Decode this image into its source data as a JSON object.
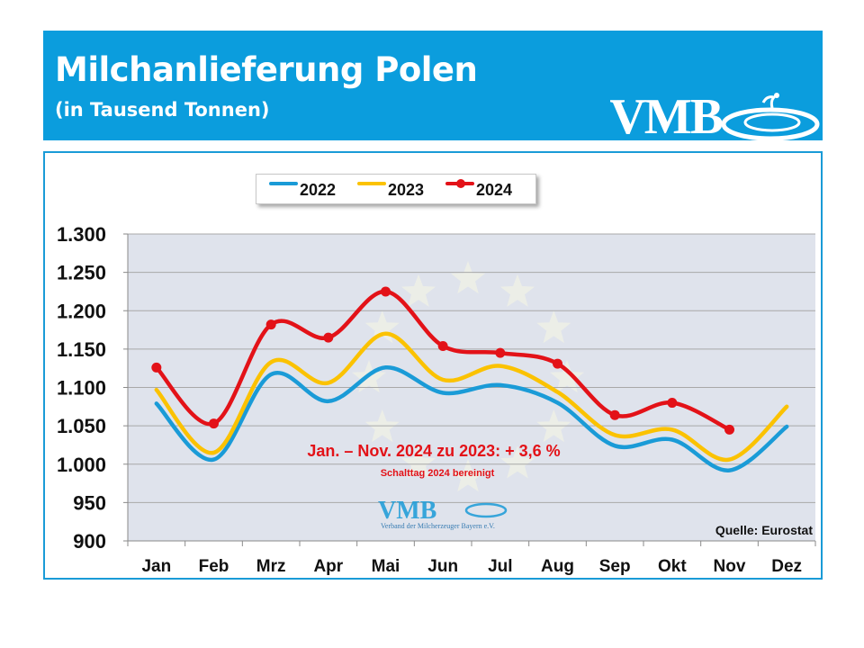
{
  "header": {
    "title": "Milchanlieferung Polen",
    "subtitle": "(in Tausend Tonnen)",
    "logo_text": "VMB"
  },
  "colors": {
    "header_bg": "#0b9ddd",
    "frame": "#1a9bd7",
    "plot_bg": "#dfe3ec",
    "series_2022": "#1a9bd7",
    "series_2023": "#fbc200",
    "series_2024": "#e31218",
    "annotation": "#e31218"
  },
  "chart_data": {
    "type": "line",
    "categories": [
      "Jan",
      "Feb",
      "Mrz",
      "Apr",
      "Mai",
      "Jun",
      "Jul",
      "Aug",
      "Sep",
      "Okt",
      "Nov",
      "Dez"
    ],
    "ylim": [
      900,
      1300
    ],
    "yticks": [
      900,
      950,
      1000,
      1050,
      1100,
      1150,
      1200,
      1250,
      1300
    ],
    "ytick_labels": [
      "900",
      "950",
      "1.000",
      "1.050",
      "1.100",
      "1.150",
      "1.200",
      "1.250",
      "1.300"
    ],
    "grid": true,
    "legend": "top",
    "series": [
      {
        "name": "2022",
        "values": [
          1079,
          1006,
          1117,
          1082,
          1126,
          1093,
          1103,
          1080,
          1024,
          1032,
          992,
          1049
        ],
        "markers": false
      },
      {
        "name": "2023",
        "values": [
          1097,
          1015,
          1133,
          1106,
          1170,
          1110,
          1128,
          1094,
          1038,
          1045,
          1006,
          1075
        ],
        "markers": false
      },
      {
        "name": "2024",
        "values": [
          1126,
          1053,
          1182,
          1165,
          1225,
          1154,
          1145,
          1131,
          1064,
          1080,
          1045,
          null
        ],
        "markers": true
      }
    ],
    "annotations": {
      "main": "Jan. – Nov. 2024 zu 2023: + 3,6 %",
      "note": "Schalttag 2024 bereinigt",
      "source": "Quelle: Eurostat",
      "watermark_logo": "VMB",
      "watermark_caption": "Verband der Milcherzeuger Bayern e.V."
    }
  }
}
